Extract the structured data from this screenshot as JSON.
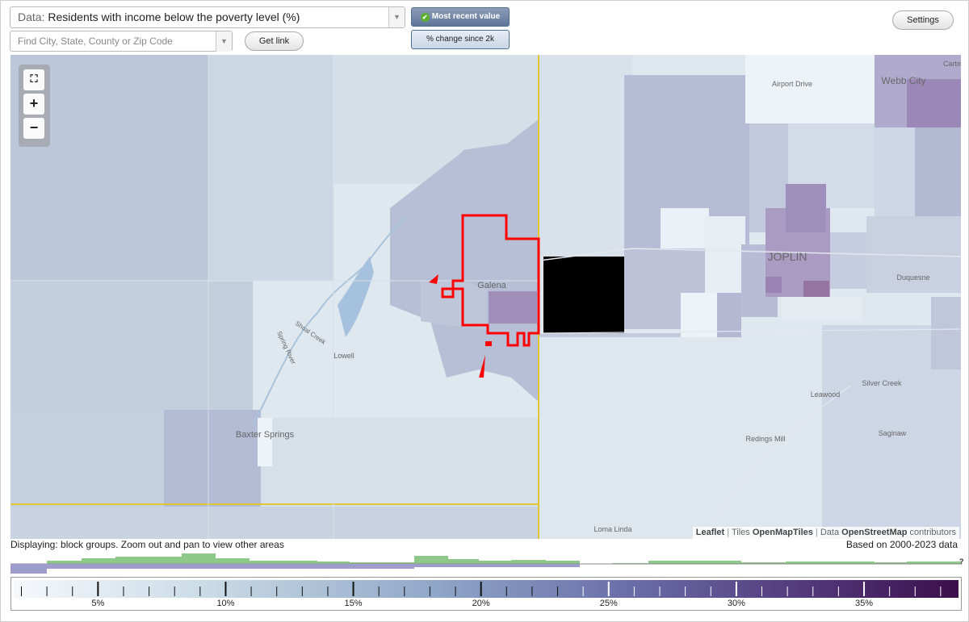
{
  "controls": {
    "data_prefix": "Data:",
    "data_label": "Residents with income below the poverty level (%)",
    "search_placeholder": "Find City, State, County or Zip Code",
    "get_link": "Get link",
    "settings": "Settings",
    "toggle_recent": "Most recent value",
    "toggle_change": "% change since 2k"
  },
  "map": {
    "labels": {
      "galena": "Galena",
      "joplin": "JOPLIN",
      "webb_city": "Webb City",
      "airport_drive": "Airport Drive",
      "carterville": "Cartervi",
      "duquesne": "Duquesne",
      "silver_creek": "Silver Creek",
      "leawood": "Leawood",
      "redings_mill": "Redings Mill",
      "saginaw": "Saginaw",
      "loma_linda": "Loma Linda",
      "lowell": "Lowell",
      "baxter_springs": "Baxter Springs",
      "shoal_creek": "Shoal Creek",
      "spring_river": "Spring River"
    },
    "zoom_in": "+",
    "zoom_out": "−",
    "fit_icon": "fullscreen-icon"
  },
  "attribution": {
    "leaflet": "Leaflet",
    "tiles_prefix": "Tiles",
    "tiles": "OpenMapTiles",
    "data_prefix": "Data",
    "osm": "OpenStreetMap",
    "contributors": "contributors"
  },
  "footer": {
    "displaying": "Displaying: block groups. Zoom out and pan to view other areas",
    "based_on": "Based on 2000-2023 data",
    "unknown_mark": "?"
  },
  "legend": {
    "min": 1.7,
    "max": 38.7,
    "ticks": [
      "5%",
      "10%",
      "15%",
      "20%",
      "25%",
      "30%",
      "35%"
    ],
    "tick_values": [
      5,
      10,
      15,
      20,
      25,
      30,
      35
    ],
    "colors": [
      "#f5f8fb",
      "#cbdce7",
      "#8ea6c7",
      "#6a6ea9",
      "#4d2d70",
      "#3c0f4b"
    ]
  },
  "colors": {
    "highlight": "#ff0000",
    "state_line": "#e0c535",
    "histogram_green": "#8fc98a",
    "histogram_purple": "#9d9ccb"
  }
}
